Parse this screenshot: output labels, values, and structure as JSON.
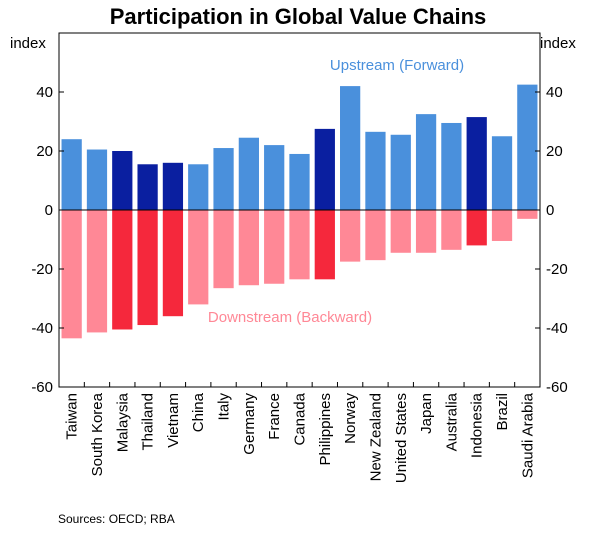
{
  "chart_data": {
    "type": "bar",
    "title": "Participation in Global Value Chains",
    "ylabel_left": "index",
    "ylabel_right": "index",
    "ylim": [
      -60,
      60
    ],
    "yticks": [
      40,
      20,
      0,
      -20,
      -40,
      -60
    ],
    "grid": false,
    "categories": [
      "Taiwan",
      "South Korea",
      "Malaysia",
      "Thailand",
      "Vietnam",
      "China",
      "Italy",
      "Germany",
      "France",
      "Canada",
      "Philippines",
      "Norway",
      "New Zealand",
      "United States",
      "Japan",
      "Australia",
      "Indonesia",
      "Brazil",
      "Saudi Arabia"
    ],
    "highlighted": [
      "Malaysia",
      "Thailand",
      "Vietnam",
      "Philippines",
      "Indonesia"
    ],
    "series": [
      {
        "name": "Upstream (Forward)",
        "values": [
          24,
          20.5,
          20,
          15.5,
          16,
          15.5,
          21,
          24.5,
          22,
          19,
          27.5,
          42,
          26.5,
          25.5,
          32.5,
          29.5,
          31.5,
          25,
          42.5
        ],
        "color": "#4a90dc",
        "highlight_color": "#0a1fa0"
      },
      {
        "name": "Downstream (Backward)",
        "values": [
          -43.5,
          -41.5,
          -40.5,
          -39,
          -36,
          -32,
          -26.5,
          -25.5,
          -25,
          -23.5,
          -23.5,
          -17.5,
          -17,
          -14.5,
          -14.5,
          -13.5,
          -12,
          -10.5,
          -3
        ],
        "color": "#ff8896",
        "highlight_color": "#f5283c"
      }
    ]
  },
  "source_text": "Sources:   OECD; RBA"
}
